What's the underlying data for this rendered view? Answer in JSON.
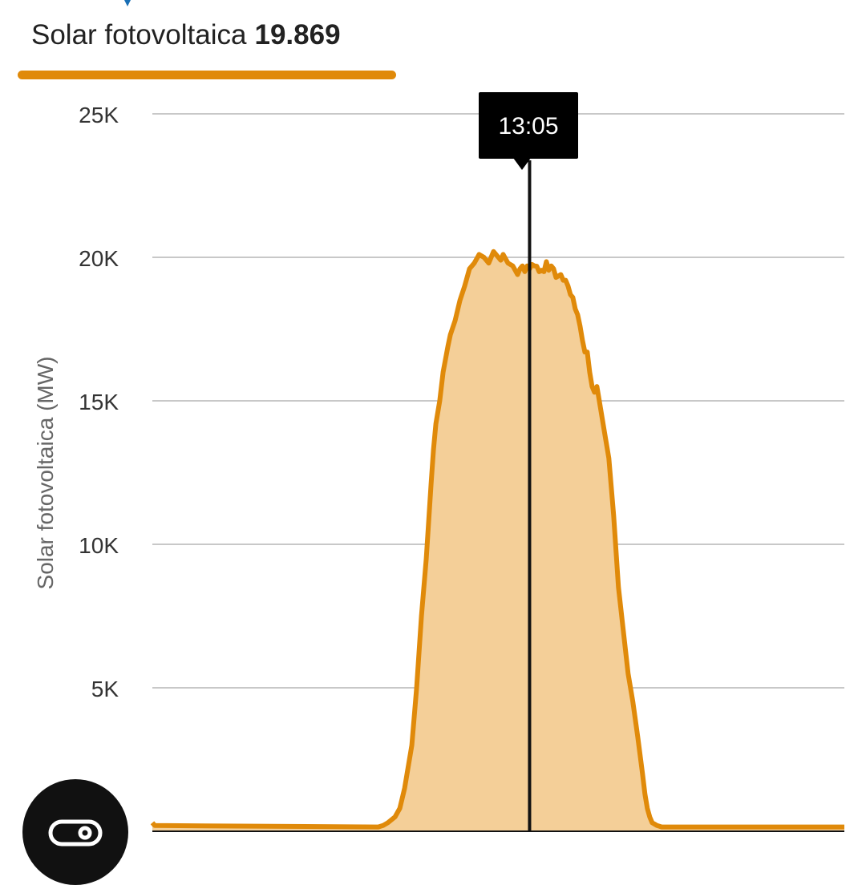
{
  "tab": {
    "label": "Solar fotovoltaica",
    "value": "19.869",
    "accent_color": "#e08a0a"
  },
  "tooltip": {
    "time": "13:05"
  },
  "fab": {
    "icon": "co2-icon"
  },
  "colors": {
    "line": "#e08a0a",
    "fill": "#f4cf98",
    "grid": "#c8c8c8",
    "cursor": "#111111",
    "tooltip_bg": "#000000",
    "tooltip_text": "#ffffff"
  },
  "chart_data": {
    "type": "area",
    "title": "",
    "xlabel": "",
    "ylabel": "Solar fotovoltaica (MW)",
    "ylim": [
      0,
      25000
    ],
    "xlim": [
      0,
      1440
    ],
    "yticks": [
      {
        "value": 5000,
        "label": "5K"
      },
      {
        "value": 10000,
        "label": "10K"
      },
      {
        "value": 15000,
        "label": "15K"
      },
      {
        "value": 20000,
        "label": "20K"
      },
      {
        "value": 25000,
        "label": "25K"
      }
    ],
    "cursor_minute": 785,
    "series": [
      {
        "name": "Solar fotovoltaica",
        "x": [
          0,
          5,
          470,
          480,
          490,
          505,
          515,
          525,
          535,
          540,
          550,
          560,
          570,
          575,
          580,
          585,
          590,
          598,
          605,
          615,
          620,
          630,
          640,
          650,
          660,
          670,
          680,
          690,
          700,
          710,
          720,
          725,
          730,
          740,
          750,
          760,
          765,
          770,
          775,
          780,
          785,
          790,
          795,
          800,
          805,
          810,
          815,
          820,
          825,
          830,
          835,
          840,
          850,
          855,
          860,
          865,
          870,
          875,
          880,
          885,
          890,
          895,
          900,
          905,
          910,
          915,
          920,
          925,
          930,
          940,
          950,
          960,
          970,
          980,
          990,
          1000,
          1010,
          1020,
          1025,
          1030,
          1035,
          1040,
          1045,
          1050,
          1060,
          1440
        ],
        "y": [
          300,
          200,
          150,
          200,
          300,
          500,
          800,
          1500,
          2500,
          3000,
          5000,
          7500,
          9500,
          10800,
          12100,
          13300,
          14200,
          15000,
          16000,
          16900,
          17300,
          17800,
          18500,
          19000,
          19600,
          19800,
          20100,
          20000,
          19800,
          20200,
          20000,
          19900,
          20100,
          19800,
          19700,
          19400,
          19600,
          19700,
          19500,
          19700,
          19600,
          19750,
          19700,
          19690,
          19500,
          19550,
          19500,
          19850,
          19550,
          19700,
          19600,
          19300,
          19400,
          19200,
          19200,
          19000,
          18700,
          18600,
          18200,
          18000,
          17600,
          17100,
          16700,
          16700,
          16000,
          15500,
          15300,
          15500,
          15000,
          14000,
          13000,
          11000,
          8500,
          7000,
          5500,
          4500,
          3300,
          2000,
          1300,
          800,
          500,
          300,
          250,
          200,
          150,
          150
        ]
      }
    ]
  }
}
